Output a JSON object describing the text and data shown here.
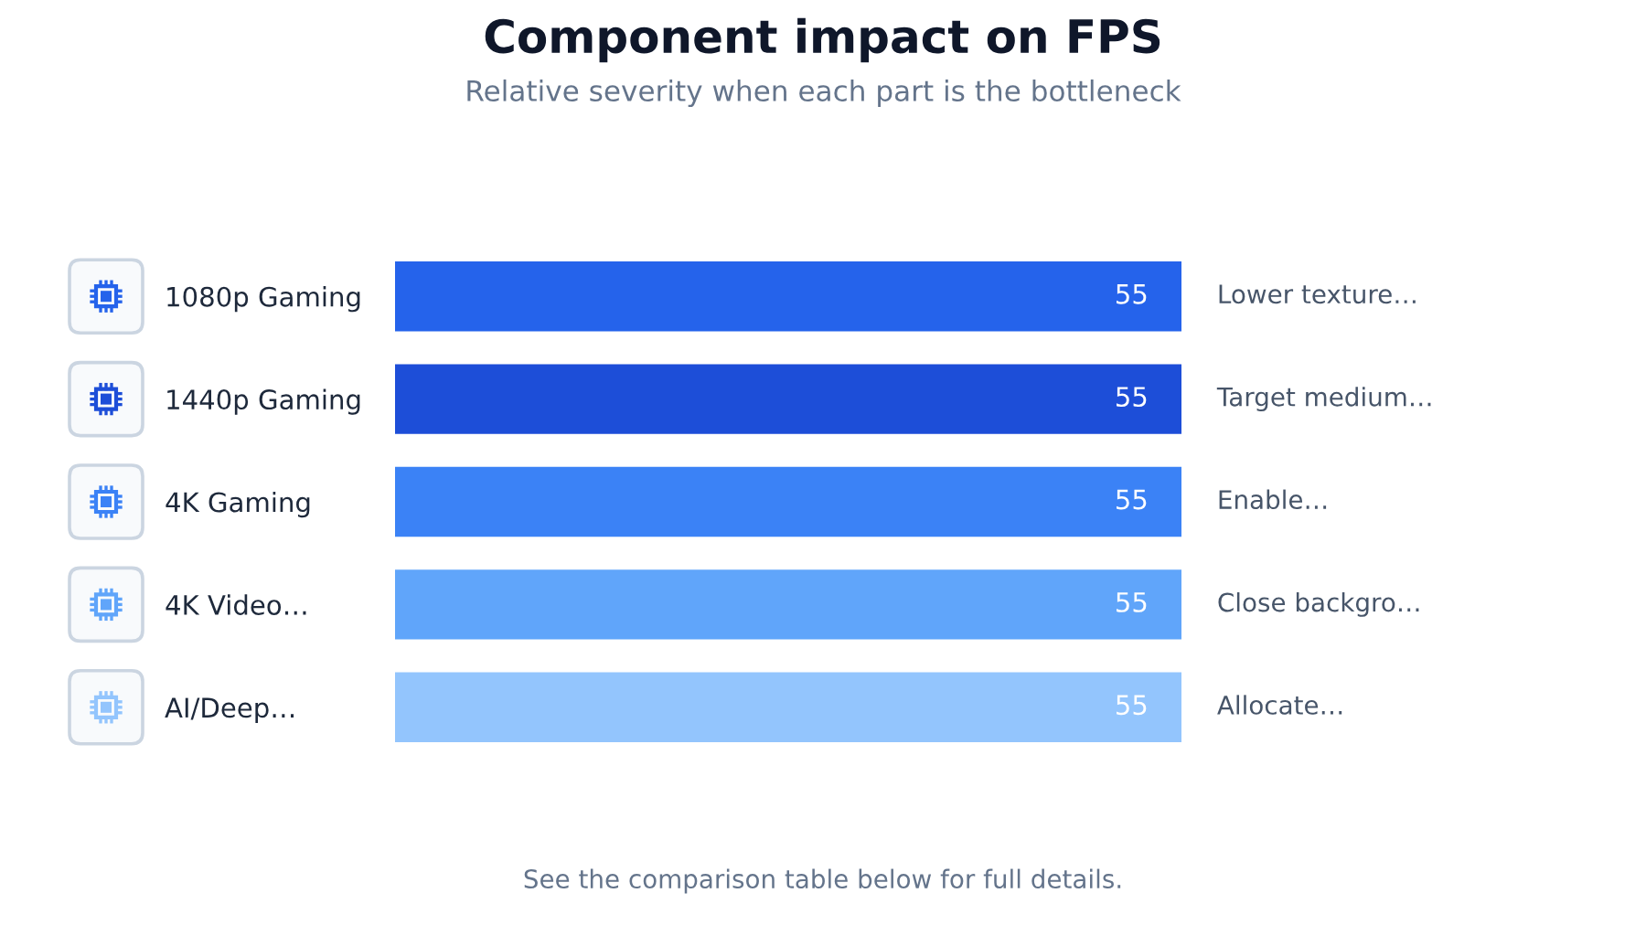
{
  "chart_data": {
    "type": "bar",
    "orientation": "horizontal",
    "title": "Component impact on FPS",
    "subtitle": "Relative severity when each part is the bottleneck",
    "categories": [
      "1080p Gaming",
      "1440p Gaming",
      "4K Gaming",
      "4K Video…",
      "AI/Deep…"
    ],
    "values": [
      55,
      55,
      55,
      55,
      55
    ],
    "colors": [
      "#2563eb",
      "#1d4ed8",
      "#3b82f6",
      "#60a5fa",
      "#93c5fd"
    ],
    "data_labels": true,
    "tick_labels": "y",
    "annotations": [
      "Lower texture…",
      "Target medium…",
      "Enable…",
      "Close backgro…",
      "Allocate…",
      "See the comparison table below for full details."
    ]
  }
}
